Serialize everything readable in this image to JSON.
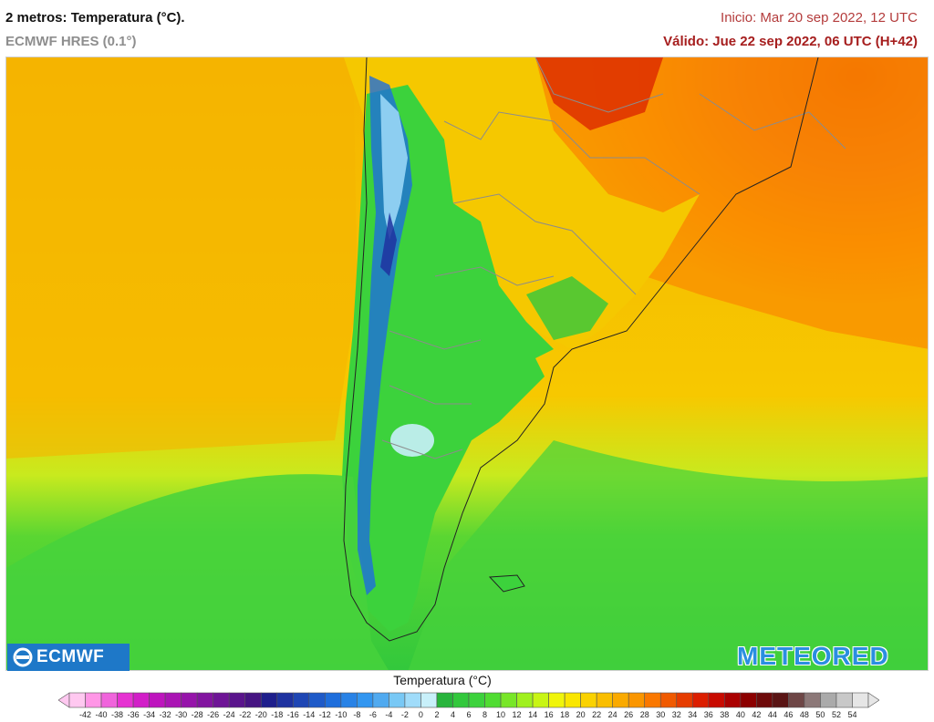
{
  "header": {
    "title": "2 metros: Temperatura (°C).",
    "model": "ECMWF HRES (0.1°)",
    "init": "Inicio: Mar 20 sep 2022, 12 UTC",
    "valid": "Válido: Jue 22 sep 2022, 06 UTC (H+42)"
  },
  "logos": {
    "left": "ECMWF",
    "right": "METEORED"
  },
  "legend": {
    "title": "Temperatura (°C)",
    "ticks": [
      "-42",
      "-40",
      "-38",
      "-36",
      "-34",
      "-32",
      "-30",
      "-28",
      "-26",
      "-24",
      "-22",
      "-20",
      "-18",
      "-16",
      "-14",
      "-12",
      "-10",
      "-8",
      "-6",
      "-4",
      "-2",
      "0",
      "2",
      "4",
      "6",
      "8",
      "10",
      "12",
      "14",
      "16",
      "18",
      "20",
      "22",
      "24",
      "26",
      "28",
      "30",
      "32",
      "34",
      "36",
      "38",
      "40",
      "42",
      "44",
      "46",
      "48",
      "50",
      "52",
      "54"
    ],
    "colors": [
      "#ffc8f0",
      "#ff96e6",
      "#f064dc",
      "#e632d2",
      "#d21ec8",
      "#be14be",
      "#aa14b4",
      "#9614aa",
      "#8214a0",
      "#6e1496",
      "#5a148c",
      "#461482",
      "#1e1e8c",
      "#1e32a0",
      "#1e46b4",
      "#1e5ac8",
      "#1e6edc",
      "#2882e6",
      "#3296f0",
      "#50aaf0",
      "#78c8f5",
      "#a0dcfa",
      "#c8f0fa",
      "#28b43c",
      "#32c83c",
      "#3cd23c",
      "#50dc32",
      "#78e628",
      "#a0f01e",
      "#c8f514",
      "#f0f50a",
      "#fae600",
      "#fad200",
      "#fabe00",
      "#faaa00",
      "#fa9600",
      "#fa7800",
      "#f05a00",
      "#e63c00",
      "#dc1e00",
      "#c80a00",
      "#aa0000",
      "#8c0000",
      "#6e0a0a",
      "#5a1414",
      "#6e4646",
      "#8c7878",
      "#aaaaaa",
      "#c8c8c8",
      "#e6e6e6"
    ]
  },
  "map": {
    "ocean_color": "#f5b800",
    "land_color": "#3cd23c",
    "south_color": "#50dc32",
    "hot_color": "#f06414"
  }
}
